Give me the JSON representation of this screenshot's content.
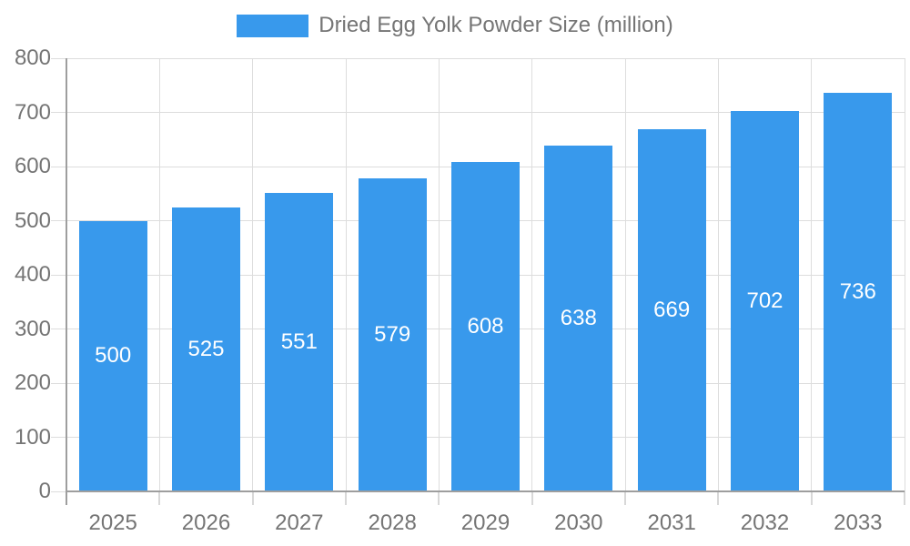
{
  "chart_data": {
    "type": "bar",
    "title": "Dried Egg Yolk Powder Size (million)",
    "categories": [
      "2025",
      "2026",
      "2027",
      "2028",
      "2029",
      "2030",
      "2031",
      "2032",
      "2033"
    ],
    "series": [
      {
        "name": "Dried Egg Yolk Powder Size (million)",
        "values": [
          500,
          525,
          551,
          579,
          608,
          638,
          669,
          702,
          736
        ]
      }
    ],
    "xlabel": "",
    "ylabel": "",
    "ylim": [
      0,
      800
    ],
    "ytick_step": 100,
    "grid": true,
    "legend_position": "top",
    "bar_value_labels": "inside-center",
    "colors": {
      "bar": "#3899EC",
      "bar_label": "#FFFFFF",
      "axis_text": "#757575",
      "gridline": "#DDDDDD",
      "axis_line": "#9E9E9E",
      "tick": "#D8D8D8",
      "background": "#FFFFFF"
    }
  }
}
